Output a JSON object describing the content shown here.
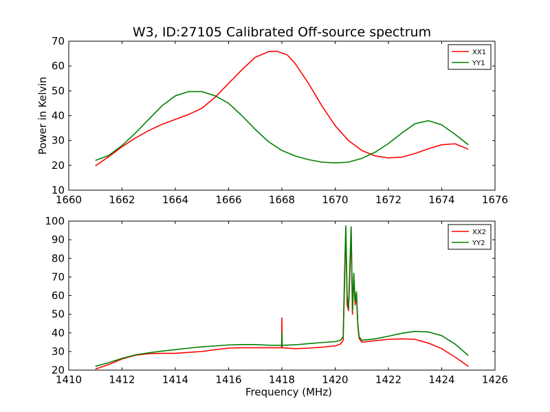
{
  "title": "W3, ID:27105 Calibrated Off-source spectrum",
  "chart_data": [
    {
      "type": "line",
      "ylabel": "Power in Kelvin",
      "xlabel": "",
      "xlim": [
        1660,
        1676
      ],
      "ylim": [
        10,
        70
      ],
      "xticks": [
        1660,
        1662,
        1664,
        1666,
        1668,
        1670,
        1672,
        1674,
        1676
      ],
      "yticks": [
        10,
        20,
        30,
        40,
        50,
        60,
        70
      ],
      "grid": false,
      "legend": "top-right",
      "series": [
        {
          "name": "XX1",
          "color": "#ff0000",
          "x": [
            1661.0,
            1661.5,
            1662.0,
            1662.5,
            1663.0,
            1663.5,
            1664.0,
            1664.5,
            1665.0,
            1665.5,
            1666.0,
            1666.5,
            1667.0,
            1667.5,
            1667.8,
            1668.2,
            1668.5,
            1669.0,
            1669.5,
            1670.0,
            1670.5,
            1671.0,
            1671.5,
            1672.0,
            1672.5,
            1673.0,
            1673.5,
            1674.0,
            1674.5,
            1675.0
          ],
          "y": [
            19.8,
            23.5,
            27.5,
            31.0,
            34.0,
            36.5,
            38.5,
            40.5,
            43.0,
            47.5,
            53.0,
            58.5,
            63.5,
            65.8,
            66.0,
            64.5,
            61.0,
            53.0,
            44.0,
            36.0,
            30.0,
            26.0,
            23.8,
            23.0,
            23.3,
            24.8,
            26.7,
            28.3,
            28.7,
            26.5
          ]
        },
        {
          "name": "YY1",
          "color": "#008000",
          "x": [
            1661.0,
            1661.5,
            1662.0,
            1662.5,
            1663.0,
            1663.5,
            1664.0,
            1664.5,
            1665.0,
            1665.5,
            1666.0,
            1666.5,
            1667.0,
            1667.5,
            1668.0,
            1668.5,
            1669.0,
            1669.5,
            1670.0,
            1670.5,
            1671.0,
            1671.5,
            1672.0,
            1672.5,
            1673.0,
            1673.5,
            1674.0,
            1674.5,
            1675.0
          ],
          "y": [
            22.0,
            24.0,
            28.0,
            33.0,
            38.5,
            44.0,
            48.0,
            49.7,
            49.7,
            48.0,
            45.0,
            40.0,
            34.5,
            29.5,
            26.0,
            23.8,
            22.3,
            21.3,
            21.0,
            21.3,
            22.8,
            25.3,
            28.8,
            33.0,
            36.8,
            38.0,
            36.3,
            32.5,
            28.3
          ]
        }
      ]
    },
    {
      "type": "line",
      "ylabel": "",
      "xlabel": "Frequency (MHz)",
      "xlim": [
        1410,
        1426
      ],
      "ylim": [
        20,
        100
      ],
      "xticks": [
        1410,
        1412,
        1414,
        1416,
        1418,
        1420,
        1422,
        1424,
        1426
      ],
      "yticks": [
        20,
        30,
        40,
        50,
        60,
        70,
        80,
        90,
        100
      ],
      "grid": false,
      "legend": "top-right",
      "series": [
        {
          "name": "XX2",
          "color": "#ff0000",
          "x": [
            1411.0,
            1411.5,
            1412.0,
            1412.5,
            1413.0,
            1413.5,
            1414.0,
            1414.5,
            1415.0,
            1415.5,
            1416.0,
            1416.5,
            1417.0,
            1417.5,
            1417.99,
            1418.0,
            1418.01,
            1418.5,
            1419.0,
            1419.5,
            1420.0,
            1420.2,
            1420.3,
            1420.35,
            1420.4,
            1420.45,
            1420.5,
            1420.55,
            1420.6,
            1420.65,
            1420.7,
            1420.75,
            1420.8,
            1420.85,
            1420.9,
            1421.0,
            1421.5,
            1422.0,
            1422.5,
            1423.0,
            1423.5,
            1424.0,
            1424.5,
            1425.0
          ],
          "y": [
            20.5,
            23.0,
            26.0,
            28.0,
            28.8,
            29.0,
            29.0,
            29.5,
            30.0,
            31.0,
            31.8,
            32.0,
            32.0,
            32.0,
            32.0,
            48.0,
            32.0,
            31.5,
            31.8,
            32.3,
            33.0,
            34.0,
            36.0,
            65.0,
            96.0,
            55.0,
            52.0,
            70.0,
            96.0,
            50.0,
            70.0,
            55.0,
            60.0,
            44.0,
            37.0,
            35.0,
            35.8,
            36.5,
            36.8,
            36.5,
            34.5,
            31.5,
            27.0,
            22.0
          ]
        },
        {
          "name": "YY2",
          "color": "#008000",
          "x": [
            1411.0,
            1411.5,
            1412.0,
            1412.5,
            1413.0,
            1413.5,
            1414.0,
            1414.5,
            1415.0,
            1415.5,
            1416.0,
            1416.5,
            1417.0,
            1417.5,
            1417.99,
            1418.0,
            1418.01,
            1418.5,
            1419.0,
            1419.5,
            1420.0,
            1420.2,
            1420.3,
            1420.35,
            1420.4,
            1420.45,
            1420.5,
            1420.55,
            1420.6,
            1420.65,
            1420.7,
            1420.75,
            1420.8,
            1420.85,
            1420.9,
            1421.0,
            1421.5,
            1422.0,
            1422.5,
            1423.0,
            1423.5,
            1424.0,
            1424.5,
            1425.0
          ],
          "y": [
            22.0,
            24.0,
            26.3,
            28.2,
            29.3,
            30.2,
            31.0,
            31.8,
            32.5,
            33.0,
            33.5,
            33.7,
            33.7,
            33.4,
            33.3,
            40.0,
            33.3,
            33.6,
            34.2,
            34.8,
            35.3,
            36.0,
            38.0,
            70.0,
            97.5,
            60.0,
            53.0,
            75.0,
            97.0,
            52.0,
            72.0,
            57.0,
            62.0,
            45.0,
            38.0,
            36.0,
            36.8,
            38.2,
            39.8,
            40.8,
            40.5,
            38.5,
            34.0,
            27.8
          ]
        }
      ]
    }
  ]
}
